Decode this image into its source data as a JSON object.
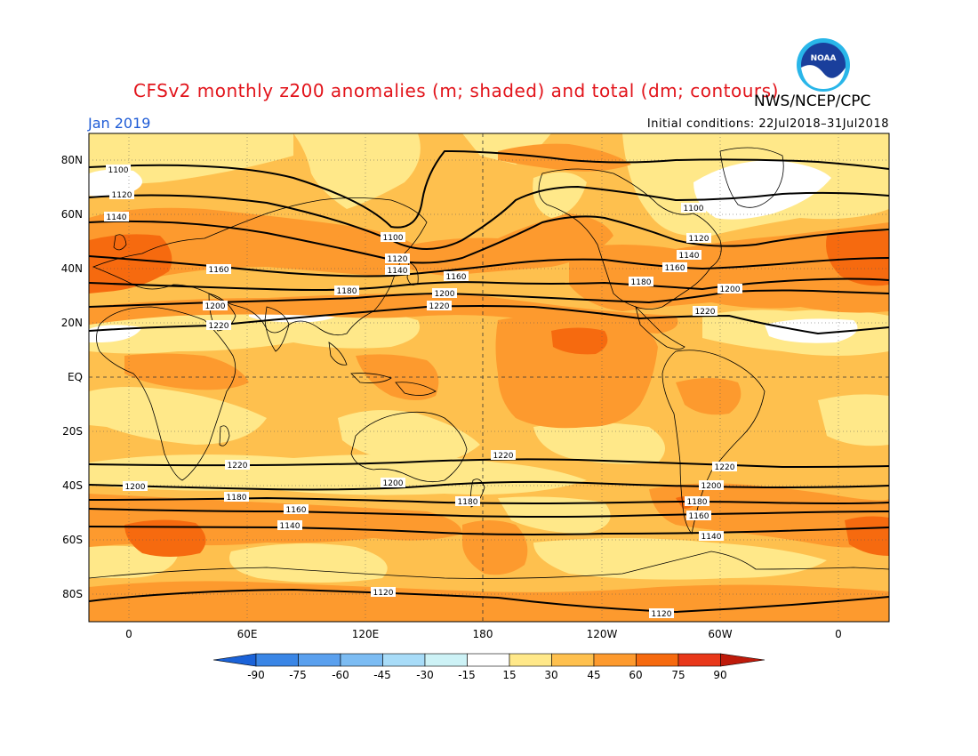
{
  "header": {
    "title": "CFSv2 monthly z200 anomalies (m; shaded) and total (dm; contours)",
    "agency": "NWS/NCEP/CPC",
    "month": "Jan 2019",
    "initial_conditions": "Initial conditions: 22Jul2018–31Jul2018",
    "logo_text": "NOAA"
  },
  "map": {
    "lat_labels": [
      "80N",
      "60N",
      "40N",
      "20N",
      "EQ",
      "20S",
      "40S",
      "60S",
      "80S"
    ],
    "lon_labels": [
      "0",
      "60E",
      "120E",
      "180",
      "120W",
      "60W",
      "0"
    ],
    "contour_labels": [
      "1100",
      "1120",
      "1140",
      "1160",
      "1180",
      "1200",
      "1220"
    ]
  },
  "colorbar": {
    "tick_labels": [
      "-90",
      "-75",
      "-60",
      "-45",
      "-30",
      "-15",
      "15",
      "30",
      "45",
      "60",
      "75",
      "90"
    ],
    "colors": [
      "#1a62d8",
      "#3a86e6",
      "#5aa0ee",
      "#7cbcf3",
      "#a8dcf8",
      "#cdf2f6",
      "#ffffff",
      "#ffe889",
      "#fec04e",
      "#fd9a2e",
      "#f66a0f",
      "#e8381a",
      "#be1a0a"
    ]
  }
}
